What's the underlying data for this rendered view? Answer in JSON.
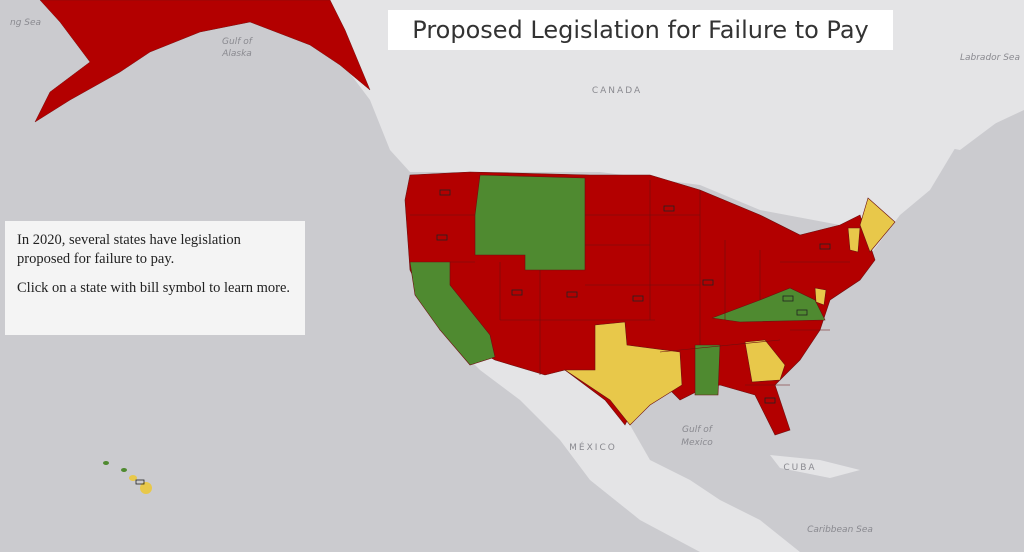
{
  "title": "Proposed Legislation for Failure to Pay",
  "info": {
    "paragraphs": [
      "In 2020, several states have legislation proposed for failure to pay.",
      "Click on a state with bill symbol to learn more."
    ]
  },
  "map_labels": [
    {
      "text": "ng Sea"
    },
    {
      "text": "Gulf of"
    },
    {
      "text": "Alaska"
    },
    {
      "text": "CANADA"
    },
    {
      "text": "Labrador Sea"
    },
    {
      "text": "MÉXICO"
    },
    {
      "text": "Gulf of"
    },
    {
      "text": "Mexico"
    },
    {
      "text": "CUBA"
    },
    {
      "text": "Caribbean Sea"
    }
  ]
}
